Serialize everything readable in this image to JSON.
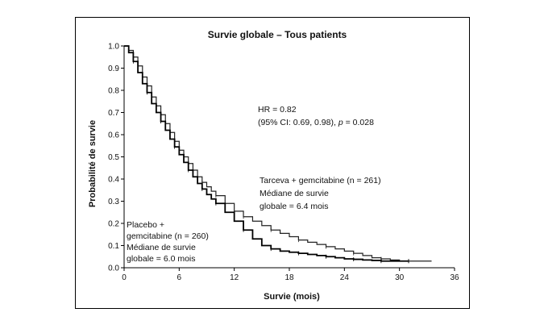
{
  "chart_data": {
    "type": "line",
    "title": "Survie globale – Tous patients",
    "xlabel": "Survie (mois)",
    "ylabel": "Probabilité de survie",
    "xlim": [
      0,
      36
    ],
    "ylim": [
      0.0,
      1.0
    ],
    "xticks": [
      "0",
      "6",
      "12",
      "18",
      "24",
      "30",
      "36"
    ],
    "yticks": [
      "0.0",
      "0.1",
      "0.2",
      "0.3",
      "0.4",
      "0.5",
      "0.6",
      "0.7",
      "0.8",
      "0.9",
      "1.0"
    ],
    "grid": false,
    "series": [
      {
        "name": "Tarceva + gemcitabine (n = 261)",
        "x": [
          0,
          0.5,
          1,
          1.5,
          2,
          2.5,
          3,
          3.5,
          4,
          4.5,
          5,
          5.5,
          6,
          6.5,
          7,
          7.5,
          8,
          8.5,
          9,
          9.5,
          10,
          11,
          12,
          13,
          14,
          15,
          16,
          17,
          18,
          19,
          20,
          21,
          22,
          23,
          24,
          25,
          26,
          27,
          28,
          29,
          30,
          31,
          33.5
        ],
        "y": [
          1.0,
          0.98,
          0.95,
          0.91,
          0.86,
          0.82,
          0.77,
          0.73,
          0.69,
          0.65,
          0.61,
          0.57,
          0.53,
          0.5,
          0.47,
          0.44,
          0.41,
          0.385,
          0.365,
          0.345,
          0.325,
          0.29,
          0.255,
          0.23,
          0.21,
          0.19,
          0.17,
          0.155,
          0.14,
          0.125,
          0.115,
          0.105,
          0.095,
          0.085,
          0.075,
          0.065,
          0.055,
          0.045,
          0.04,
          0.035,
          0.03,
          0.03,
          0.03
        ]
      },
      {
        "name": "Placebo + gemcitabine (n = 260)",
        "x": [
          0,
          0.5,
          1,
          1.5,
          2,
          2.5,
          3,
          3.5,
          4,
          4.5,
          5,
          5.5,
          6,
          6.5,
          7,
          7.5,
          8,
          8.5,
          9,
          9.5,
          10,
          11,
          12,
          13,
          14,
          15,
          16,
          17,
          18,
          19,
          20,
          21,
          22,
          23,
          24,
          25,
          26,
          27,
          28,
          29,
          30,
          31
        ],
        "y": [
          1.0,
          0.97,
          0.93,
          0.88,
          0.83,
          0.79,
          0.74,
          0.7,
          0.66,
          0.62,
          0.58,
          0.545,
          0.51,
          0.475,
          0.44,
          0.41,
          0.38,
          0.355,
          0.33,
          0.31,
          0.29,
          0.25,
          0.21,
          0.17,
          0.13,
          0.1,
          0.085,
          0.075,
          0.07,
          0.065,
          0.06,
          0.055,
          0.05,
          0.045,
          0.04,
          0.038,
          0.035,
          0.033,
          0.03,
          0.03,
          0.03,
          0.03
        ]
      }
    ],
    "annotations": {
      "hr_line1": "HR = 0.82",
      "hr_line2_pre": "(95% CI: 0.69, 0.98),",
      "hr_p": "p",
      "hr_line2_post": "= 0.028",
      "tarceva": [
        "Tarceva + gemcitabine (n = 261)",
        "Médiane de survie",
        "globale = 6.4 mois"
      ],
      "placebo": [
        "Placebo +",
        "gemcitabine (n = 260)",
        "Médiane de survie",
        "globale = 6.0 mois"
      ]
    }
  }
}
